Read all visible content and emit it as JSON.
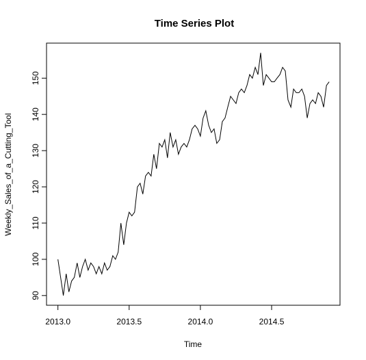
{
  "chart_data": {
    "type": "line",
    "title": "Time Series Plot",
    "xlabel": "Time",
    "ylabel": "Weekly_Sales_of_a_Cutting_Tool",
    "x": [
      2013,
      2013.019,
      2013.038,
      2013.058,
      2013.077,
      2013.096,
      2013.115,
      2013.135,
      2013.154,
      2013.173,
      2013.192,
      2013.212,
      2013.231,
      2013.25,
      2013.269,
      2013.288,
      2013.308,
      2013.327,
      2013.346,
      2013.365,
      2013.385,
      2013.404,
      2013.423,
      2013.442,
      2013.462,
      2013.481,
      2013.5,
      2013.519,
      2013.538,
      2013.558,
      2013.577,
      2013.596,
      2013.615,
      2013.635,
      2013.654,
      2013.673,
      2013.692,
      2013.712,
      2013.731,
      2013.75,
      2013.769,
      2013.788,
      2013.808,
      2013.827,
      2013.846,
      2013.865,
      2013.885,
      2013.904,
      2013.923,
      2013.942,
      2013.962,
      2013.981,
      2014,
      2014.019,
      2014.038,
      2014.058,
      2014.077,
      2014.096,
      2014.115,
      2014.135,
      2014.154,
      2014.173,
      2014.192,
      2014.212,
      2014.231,
      2014.25,
      2014.269,
      2014.288,
      2014.308,
      2014.327,
      2014.346,
      2014.365,
      2014.385,
      2014.404,
      2014.423,
      2014.442,
      2014.462,
      2014.481,
      2014.5,
      2014.519,
      2014.538,
      2014.558,
      2014.577,
      2014.596,
      2014.615,
      2014.635,
      2014.654,
      2014.673,
      2014.692,
      2014.712,
      2014.731,
      2014.75,
      2014.769,
      2014.788,
      2014.808,
      2014.827,
      2014.846,
      2014.865,
      2014.885,
      2014.904
    ],
    "series": [
      {
        "color": "#000000",
        "values": [
          100,
          95,
          90,
          96,
          91,
          94,
          95,
          99,
          95,
          98,
          100,
          97,
          99,
          98,
          96,
          98,
          96,
          99,
          97,
          98,
          101,
          100,
          102,
          110,
          104,
          110,
          113,
          112,
          113,
          120,
          121,
          118,
          123,
          124,
          123,
          129,
          125,
          132,
          131,
          133,
          128,
          135,
          131,
          133,
          129,
          131,
          132,
          131,
          133,
          136,
          137,
          136,
          134,
          139,
          141,
          137,
          135,
          136,
          132,
          133,
          138,
          139,
          142,
          145,
          144,
          143,
          146,
          147,
          146,
          148,
          151,
          150,
          153,
          151,
          157,
          148,
          151,
          150,
          149,
          149,
          150,
          151,
          153,
          152,
          144,
          142,
          147,
          146,
          146,
          147,
          145,
          139,
          143,
          144,
          143,
          146,
          145,
          142,
          148,
          149
        ]
      }
    ],
    "xlim": [
      2012.92,
      2014.98
    ],
    "ylim": [
      87.32,
      159.68
    ],
    "xticks": [
      {
        "value": 2013,
        "label": "2013.0"
      },
      2013.5,
      {
        "value": 2014,
        "label": "2014.0"
      },
      2014.5
    ],
    "yticks": [
      90,
      100,
      110,
      120,
      130,
      140,
      150
    ]
  }
}
